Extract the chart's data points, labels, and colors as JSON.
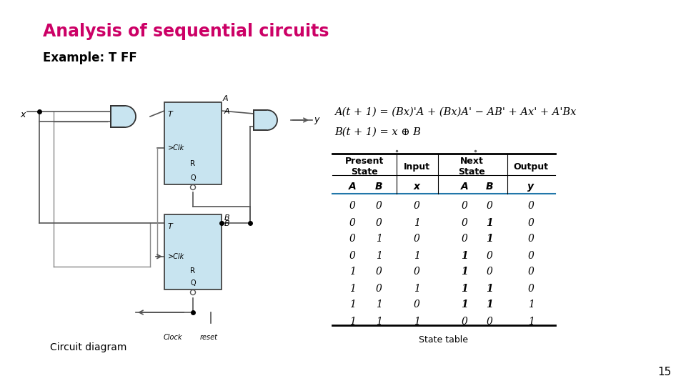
{
  "title": "Analysis of sequential circuits",
  "subtitle": "Example: T FF",
  "title_color": "#CC0066",
  "subtitle_color": "#000000",
  "table_data": [
    [
      0,
      0,
      0,
      0,
      0,
      0
    ],
    [
      0,
      0,
      1,
      0,
      1,
      0
    ],
    [
      0,
      1,
      0,
      0,
      1,
      0
    ],
    [
      0,
      1,
      1,
      1,
      0,
      0
    ],
    [
      1,
      0,
      0,
      1,
      0,
      0
    ],
    [
      1,
      0,
      1,
      1,
      1,
      0
    ],
    [
      1,
      1,
      0,
      1,
      1,
      1
    ],
    [
      1,
      1,
      1,
      0,
      0,
      1
    ]
  ],
  "table_caption": "State table",
  "footer_label": "15",
  "circuit_caption": "Circuit diagram",
  "clock_label": "Clock    reset",
  "ff_box_color": "#C8E4F0",
  "and_gate_color": "#C8E4F0",
  "background_color": "#FFFFFF",
  "wire_color": "#555555",
  "wire_color2": "#888888"
}
